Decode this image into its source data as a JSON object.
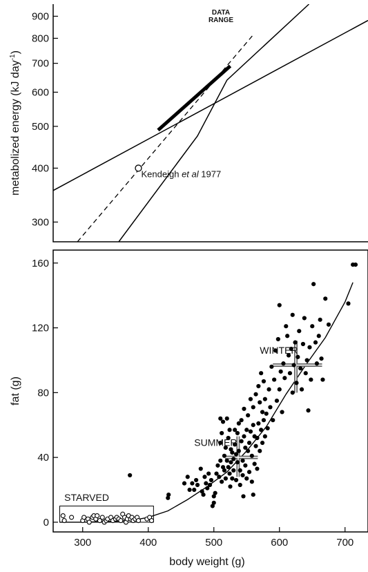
{
  "chart_data": [
    {
      "type": "line",
      "panel": "top",
      "y_scale": "log",
      "ylabel": "metabolized energy (kJ day-1)",
      "ylabel_main": "metabolized energy (kJ day",
      "ylabel_sup": "-1",
      "ylabel_close": ")",
      "xlim": [
        255,
        735
      ],
      "ylim": [
        270,
        960
      ],
      "yticks": [
        300,
        400,
        500,
        600,
        700,
        800,
        900
      ],
      "ytick_labels": [
        "300",
        "400",
        "500",
        "600",
        "700",
        "800",
        "900"
      ],
      "data_range_label_line1": "DATA",
      "data_range_label_line2": "RANGE",
      "series": [
        {
          "style": "solid",
          "x": [
            255,
            735
          ],
          "y": [
            355,
            880
          ]
        },
        {
          "style": "solid",
          "x": [
            355,
            475,
            520,
            645
          ],
          "y": [
            270,
            475,
            640,
            960
          ]
        },
        {
          "style": "dashed",
          "x": [
            292,
            560
          ],
          "y": [
            270,
            815
          ]
        },
        {
          "style": "thick",
          "x": [
            415,
            525
          ],
          "y": [
            490,
            690
          ]
        }
      ],
      "point": {
        "x": 385,
        "y": 400,
        "label_main": "Kendeigh ",
        "label_italic": "et al",
        "label_year": " 1977"
      }
    },
    {
      "type": "scatter",
      "panel": "bottom",
      "xlabel": "body weight (g)",
      "ylabel": "fat (g)",
      "xlim": [
        255,
        735
      ],
      "ylim": [
        -6,
        168
      ],
      "xticks": [
        300,
        400,
        500,
        600,
        700
      ],
      "xtick_labels": [
        "300",
        "400",
        "500",
        "600",
        "700"
      ],
      "yticks": [
        0,
        40,
        80,
        120,
        160
      ],
      "ytick_labels": [
        "0",
        "40",
        "80",
        "120",
        "160"
      ],
      "labels": {
        "starved": "STARVED",
        "summer": "SUMMER",
        "winter": "WINTER"
      },
      "starved_box": {
        "x": [
          265,
          408
        ],
        "y": [
          0,
          10
        ]
      },
      "fit_curve": {
        "x": [
          265,
          300,
          350,
          380,
          400,
          430,
          460,
          490,
          520,
          550,
          580,
          610,
          640,
          670,
          700,
          712
        ],
        "y": [
          0,
          0,
          0.5,
          1.5,
          3,
          7,
          14,
          22,
          31,
          44,
          59,
          79,
          97,
          114,
          136,
          148
        ]
      },
      "summer_mean": {
        "x": 537,
        "y": 40,
        "x_range": [
          517,
          567
        ],
        "y_range": [
          28,
          53
        ]
      },
      "winter_mean": {
        "x": 625,
        "y": 97,
        "x_range": [
          590,
          665
        ],
        "y_range": [
          80,
          112
        ]
      },
      "starved_points": [
        [
          270,
          4
        ],
        [
          272,
          1
        ],
        [
          283,
          3
        ],
        [
          300,
          1
        ],
        [
          302,
          3
        ],
        [
          308,
          2
        ],
        [
          310,
          0
        ],
        [
          315,
          3
        ],
        [
          317,
          4
        ],
        [
          320,
          2
        ],
        [
          322,
          4
        ],
        [
          326,
          1
        ],
        [
          330,
          3
        ],
        [
          333,
          0
        ],
        [
          336,
          1
        ],
        [
          338,
          2
        ],
        [
          343,
          3
        ],
        [
          346,
          1
        ],
        [
          350,
          2
        ],
        [
          352,
          3
        ],
        [
          355,
          2
        ],
        [
          358,
          1
        ],
        [
          361,
          5
        ],
        [
          364,
          3
        ],
        [
          366,
          0
        ],
        [
          368,
          2
        ],
        [
          370,
          4
        ],
        [
          373,
          2
        ],
        [
          375,
          3
        ],
        [
          377,
          1
        ],
        [
          380,
          2
        ],
        [
          383,
          3
        ],
        [
          385,
          1
        ],
        [
          398,
          2
        ],
        [
          402,
          3
        ],
        [
          405,
          1
        ]
      ],
      "fed_points": [
        [
          372,
          29
        ],
        [
          430,
          15
        ],
        [
          431,
          17
        ],
        [
          455,
          24
        ],
        [
          460,
          28
        ],
        [
          463,
          20
        ],
        [
          467,
          24
        ],
        [
          470,
          20
        ],
        [
          473,
          26
        ],
        [
          475,
          23
        ],
        [
          480,
          33
        ],
        [
          482,
          19
        ],
        [
          484,
          17
        ],
        [
          486,
          28
        ],
        [
          488,
          24
        ],
        [
          490,
          21
        ],
        [
          492,
          30
        ],
        [
          494,
          23
        ],
        [
          496,
          26
        ],
        [
          498,
          10
        ],
        [
          500,
          12
        ],
        [
          500,
          16
        ],
        [
          502,
          18
        ],
        [
          504,
          30
        ],
        [
          506,
          35
        ],
        [
          508,
          28
        ],
        [
          510,
          38
        ],
        [
          510,
          49
        ],
        [
          512,
          25
        ],
        [
          512,
          55
        ],
        [
          514,
          34
        ],
        [
          514,
          62
        ],
        [
          516,
          32
        ],
        [
          516,
          41
        ],
        [
          518,
          27
        ],
        [
          518,
          46
        ],
        [
          520,
          38
        ],
        [
          520,
          64
        ],
        [
          522,
          34
        ],
        [
          522,
          52
        ],
        [
          524,
          30
        ],
        [
          524,
          57
        ],
        [
          526,
          37
        ],
        [
          526,
          45
        ],
        [
          528,
          27
        ],
        [
          528,
          43
        ],
        [
          530,
          32
        ],
        [
          530,
          39
        ],
        [
          532,
          48
        ],
        [
          532,
          57
        ],
        [
          534,
          26
        ],
        [
          534,
          42
        ],
        [
          536,
          37
        ],
        [
          536,
          55
        ],
        [
          538,
          44
        ],
        [
          538,
          61
        ],
        [
          540,
          32
        ],
        [
          540,
          23
        ],
        [
          542,
          50
        ],
        [
          542,
          63
        ],
        [
          544,
          38
        ],
        [
          544,
          29
        ],
        [
          546,
          53
        ],
        [
          546,
          70
        ],
        [
          548,
          46
        ],
        [
          548,
          35
        ],
        [
          550,
          27
        ],
        [
          550,
          57
        ],
        [
          552,
          44
        ],
        [
          552,
          66
        ],
        [
          554,
          49
        ],
        [
          554,
          31
        ],
        [
          556,
          56
        ],
        [
          556,
          76
        ],
        [
          558,
          41
        ],
        [
          558,
          25
        ],
        [
          560,
          60
        ],
        [
          560,
          71
        ],
        [
          562,
          36
        ],
        [
          562,
          53
        ],
        [
          564,
          47
        ],
        [
          564,
          79
        ],
        [
          566,
          52
        ],
        [
          566,
          33
        ],
        [
          568,
          61
        ],
        [
          568,
          84
        ],
        [
          570,
          44
        ],
        [
          570,
          74
        ],
        [
          572,
          57
        ],
        [
          572,
          92
        ],
        [
          574,
          49
        ],
        [
          574,
          68
        ],
        [
          576,
          63
        ],
        [
          576,
          87
        ],
        [
          578,
          53
        ],
        [
          578,
          76
        ],
        [
          580,
          67
        ],
        [
          582,
          58
        ],
        [
          584,
          82
        ],
        [
          586,
          71
        ],
        [
          588,
          96
        ],
        [
          590,
          63
        ],
        [
          592,
          88
        ],
        [
          594,
          106
        ],
        [
          596,
          75
        ],
        [
          598,
          113
        ],
        [
          600,
          82
        ],
        [
          600,
          134
        ],
        [
          602,
          93
        ],
        [
          604,
          68
        ],
        [
          606,
          98
        ],
        [
          608,
          89
        ],
        [
          610,
          121
        ],
        [
          612,
          115
        ],
        [
          614,
          103
        ],
        [
          616,
          92
        ],
        [
          618,
          107
        ],
        [
          620,
          80
        ],
        [
          620,
          128
        ],
        [
          622,
          97
        ],
        [
          624,
          111
        ],
        [
          626,
          86
        ],
        [
          628,
          102
        ],
        [
          630,
          118
        ],
        [
          632,
          95
        ],
        [
          634,
          82
        ],
        [
          636,
          110
        ],
        [
          638,
          126
        ],
        [
          640,
          92
        ],
        [
          642,
          100
        ],
        [
          644,
          69
        ],
        [
          646,
          108
        ],
        [
          648,
          88
        ],
        [
          650,
          121
        ],
        [
          652,
          147
        ],
        [
          655,
          111
        ],
        [
          657,
          98
        ],
        [
          660,
          115
        ],
        [
          662,
          125
        ],
        [
          664,
          101
        ],
        [
          666,
          88
        ],
        [
          670,
          138
        ],
        [
          675,
          122
        ],
        [
          712,
          159
        ],
        [
          716,
          159
        ],
        [
          705,
          135
        ],
        [
          560,
          17
        ],
        [
          525,
          22
        ],
        [
          545,
          16
        ],
        [
          510,
          64
        ]
      ]
    }
  ]
}
